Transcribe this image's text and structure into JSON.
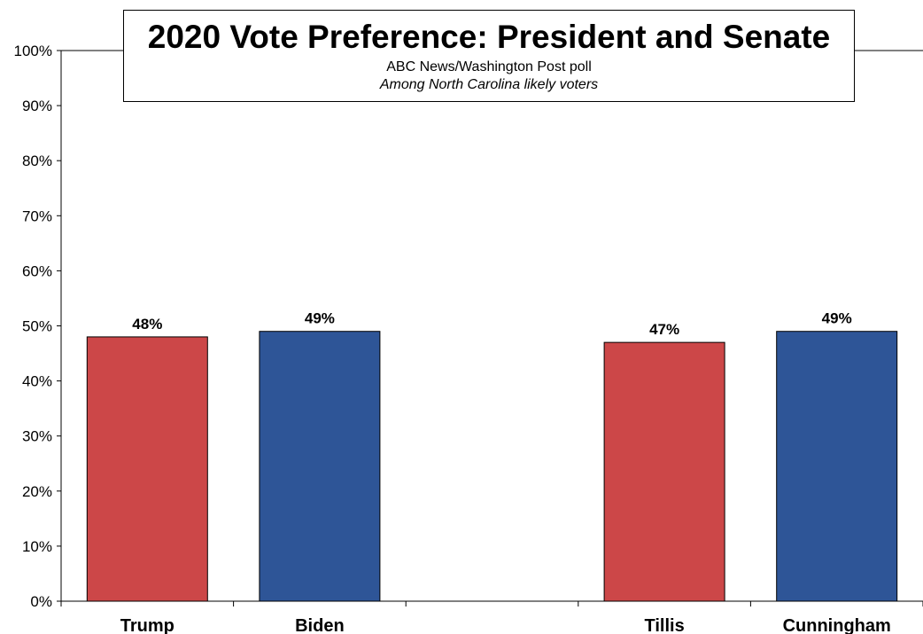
{
  "chart_data": {
    "type": "bar",
    "title": "2020 Vote Preference: President and Senate",
    "subtitle": "ABC News/Washington  Post poll",
    "note": "Among North Carolina likely voters",
    "categories": [
      "Trump",
      "Biden",
      "Tillis",
      "Cunningham"
    ],
    "values": [
      48,
      49,
      47,
      49
    ],
    "data_labels": [
      "48%",
      "49%",
      "47%",
      "49%"
    ],
    "colors": [
      "#cc4748",
      "#2e5597",
      "#cc4748",
      "#2e5597"
    ],
    "y_ticks": [
      "0%",
      "10%",
      "20%",
      "30%",
      "40%",
      "50%",
      "60%",
      "70%",
      "80%",
      "90%",
      "100%"
    ],
    "ylim": [
      0,
      100
    ],
    "xlabel": "",
    "ylabel": "",
    "grid": false,
    "legend": "none"
  }
}
